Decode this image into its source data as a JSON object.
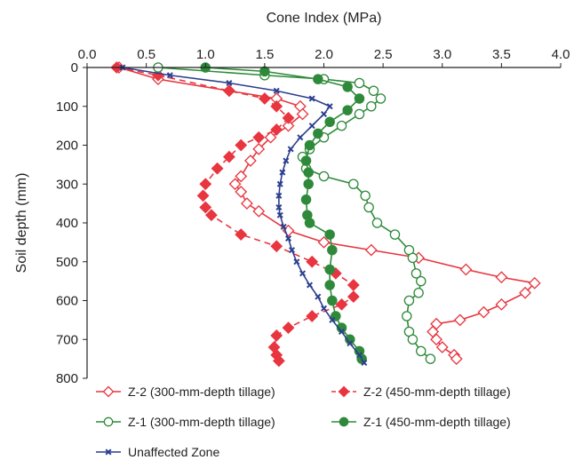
{
  "chart_data": {
    "type": "line",
    "title": "",
    "xlabel": "Cone Index (MPa)",
    "ylabel": "Soil depth (mm)",
    "xlim": [
      0,
      4
    ],
    "ylim": [
      0,
      800
    ],
    "x_axis_position": "top",
    "y_axis_inverted": true,
    "grid": false,
    "legend_position": "bottom",
    "xticks": [
      "0.0",
      "0.5",
      "1.0",
      "1.5",
      "2.0",
      "2.5",
      "3.0",
      "3.5",
      "4.0"
    ],
    "yticks": [
      "0",
      "100",
      "200",
      "300",
      "400",
      "500",
      "600",
      "700",
      "800"
    ],
    "series": [
      {
        "name": "Z-2 (300-mm-depth tillage)",
        "color": "#e8353f",
        "marker": "open-diamond",
        "line": "solid",
        "points": [
          [
            0.27,
            0
          ],
          [
            0.6,
            30
          ],
          [
            1.2,
            60
          ],
          [
            1.6,
            80
          ],
          [
            1.8,
            100
          ],
          [
            1.82,
            120
          ],
          [
            1.7,
            150
          ],
          [
            1.55,
            180
          ],
          [
            1.45,
            210
          ],
          [
            1.38,
            240
          ],
          [
            1.3,
            280
          ],
          [
            1.25,
            300
          ],
          [
            1.3,
            320
          ],
          [
            1.35,
            350
          ],
          [
            1.45,
            370
          ],
          [
            1.7,
            420
          ],
          [
            2.0,
            450
          ],
          [
            2.4,
            470
          ],
          [
            2.8,
            490
          ],
          [
            3.2,
            520
          ],
          [
            3.5,
            540
          ],
          [
            3.78,
            555
          ],
          [
            3.7,
            580
          ],
          [
            3.5,
            610
          ],
          [
            3.35,
            630
          ],
          [
            3.15,
            650
          ],
          [
            2.95,
            660
          ],
          [
            2.92,
            680
          ],
          [
            2.95,
            700
          ],
          [
            3.0,
            720
          ],
          [
            3.1,
            740
          ],
          [
            3.12,
            750
          ]
        ]
      },
      {
        "name": "Z-2 (450-mm-depth tillage)",
        "color": "#e8353f",
        "marker": "filled-diamond",
        "line": "dashed",
        "points": [
          [
            0.25,
            0
          ],
          [
            0.6,
            20
          ],
          [
            1.2,
            60
          ],
          [
            1.5,
            80
          ],
          [
            1.6,
            100
          ],
          [
            1.7,
            130
          ],
          [
            1.6,
            160
          ],
          [
            1.45,
            180
          ],
          [
            1.3,
            200
          ],
          [
            1.2,
            230
          ],
          [
            1.1,
            260
          ],
          [
            1.0,
            300
          ],
          [
            0.98,
            330
          ],
          [
            1.0,
            360
          ],
          [
            1.05,
            380
          ],
          [
            1.3,
            430
          ],
          [
            1.6,
            460
          ],
          [
            1.9,
            500
          ],
          [
            2.1,
            530
          ],
          [
            2.25,
            560
          ],
          [
            2.25,
            590
          ],
          [
            2.15,
            610
          ],
          [
            1.9,
            640
          ],
          [
            1.7,
            670
          ],
          [
            1.6,
            690
          ],
          [
            1.58,
            720
          ],
          [
            1.6,
            740
          ],
          [
            1.62,
            755
          ]
        ]
      },
      {
        "name": "Z-1 (300-mm-depth tillage)",
        "color": "#2e8a3a",
        "marker": "open-circle",
        "line": "solid",
        "points": [
          [
            0.6,
            0
          ],
          [
            1.5,
            20
          ],
          [
            2.0,
            30
          ],
          [
            2.3,
            40
          ],
          [
            2.42,
            60
          ],
          [
            2.48,
            80
          ],
          [
            2.4,
            100
          ],
          [
            2.3,
            120
          ],
          [
            2.15,
            150
          ],
          [
            2.0,
            180
          ],
          [
            1.88,
            210
          ],
          [
            1.82,
            230
          ],
          [
            1.85,
            260
          ],
          [
            2.0,
            280
          ],
          [
            2.25,
            300
          ],
          [
            2.35,
            330
          ],
          [
            2.38,
            360
          ],
          [
            2.45,
            400
          ],
          [
            2.6,
            430
          ],
          [
            2.72,
            470
          ],
          [
            2.75,
            490
          ],
          [
            2.78,
            530
          ],
          [
            2.82,
            550
          ],
          [
            2.8,
            580
          ],
          [
            2.72,
            600
          ],
          [
            2.7,
            640
          ],
          [
            2.72,
            680
          ],
          [
            2.75,
            700
          ],
          [
            2.82,
            730
          ],
          [
            2.9,
            750
          ]
        ]
      },
      {
        "name": "Z-1 (450-mm-depth tillage)",
        "color": "#2e8a3a",
        "marker": "filled-circle",
        "line": "solid",
        "points": [
          [
            1.0,
            0
          ],
          [
            1.5,
            10
          ],
          [
            1.95,
            30
          ],
          [
            2.2,
            50
          ],
          [
            2.3,
            80
          ],
          [
            2.2,
            110
          ],
          [
            2.05,
            140
          ],
          [
            1.95,
            170
          ],
          [
            1.88,
            200
          ],
          [
            1.85,
            240
          ],
          [
            1.87,
            270
          ],
          [
            1.87,
            300
          ],
          [
            1.85,
            340
          ],
          [
            1.86,
            380
          ],
          [
            1.88,
            400
          ],
          [
            2.05,
            430
          ],
          [
            2.07,
            470
          ],
          [
            2.05,
            520
          ],
          [
            2.05,
            560
          ],
          [
            2.07,
            600
          ],
          [
            2.1,
            640
          ],
          [
            2.15,
            670
          ],
          [
            2.22,
            700
          ],
          [
            2.3,
            730
          ],
          [
            2.32,
            750
          ]
        ]
      },
      {
        "name": "Unaffected Zone",
        "color": "#2b3f8f",
        "marker": "x",
        "line": "solid",
        "points": [
          [
            0.3,
            0
          ],
          [
            0.7,
            20
          ],
          [
            1.2,
            40
          ],
          [
            1.6,
            60
          ],
          [
            1.9,
            80
          ],
          [
            2.05,
            100
          ],
          [
            2.0,
            120
          ],
          [
            1.9,
            150
          ],
          [
            1.8,
            180
          ],
          [
            1.72,
            210
          ],
          [
            1.68,
            240
          ],
          [
            1.65,
            270
          ],
          [
            1.63,
            300
          ],
          [
            1.62,
            330
          ],
          [
            1.62,
            360
          ],
          [
            1.63,
            380
          ],
          [
            1.66,
            410
          ],
          [
            1.7,
            440
          ],
          [
            1.73,
            470
          ],
          [
            1.77,
            500
          ],
          [
            1.82,
            530
          ],
          [
            1.88,
            560
          ],
          [
            1.95,
            590
          ],
          [
            2.0,
            620
          ],
          [
            2.07,
            650
          ],
          [
            2.15,
            680
          ],
          [
            2.22,
            710
          ],
          [
            2.3,
            740
          ],
          [
            2.34,
            760
          ]
        ]
      }
    ]
  }
}
